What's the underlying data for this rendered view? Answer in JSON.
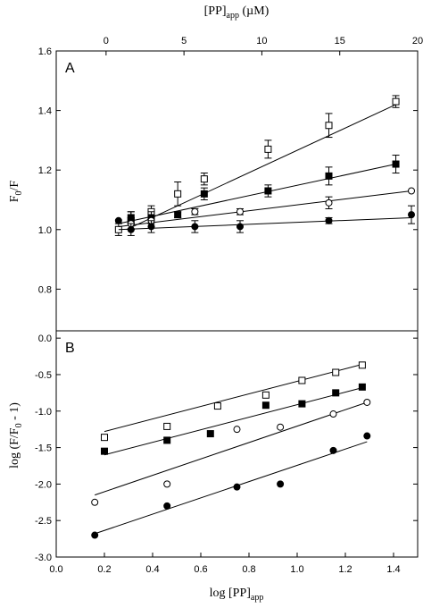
{
  "chart_data": [
    {
      "panel": "A",
      "type": "scatter",
      "ylabel": "F0/F",
      "ylabel_main": "F",
      "ylabel_sub": "0",
      "ylabel_tail": "/F",
      "x2label": "[PP]app (µM)",
      "x2label_main": "[PP]",
      "x2label_sub": "app",
      "x2label_tail": " (µM)",
      "xlim": [
        -3.2,
        20
      ],
      "ylim": [
        0.66,
        1.6
      ],
      "x2ticks": [
        "0",
        "5",
        "10",
        "15",
        "20"
      ],
      "yticks": [
        "0.8",
        "1.0",
        "1.2",
        "1.4",
        "1.6"
      ],
      "series": [
        {
          "marker": "open-square",
          "x": [
            0.8,
            1.6,
            2.9,
            4.6,
            6.3,
            10.4,
            14.3,
            18.6
          ],
          "y": [
            1.0,
            1.03,
            1.06,
            1.12,
            1.17,
            1.27,
            1.35,
            1.43
          ],
          "err": [
            0.02,
            0.03,
            0.02,
            0.04,
            0.02,
            0.03,
            0.04,
            0.02
          ],
          "fit": [
            [
              1.3,
              1.0
            ],
            [
              18.6,
              1.42
            ]
          ]
        },
        {
          "marker": "filled-square",
          "x": [
            1.6,
            2.9,
            4.6,
            6.3,
            10.4,
            14.3,
            18.6
          ],
          "y": [
            1.04,
            1.04,
            1.05,
            1.12,
            1.13,
            1.18,
            1.22
          ],
          "err": [
            0.02,
            0.02,
            0.01,
            0.02,
            0.02,
            0.03,
            0.03
          ],
          "fit": [
            [
              0.8,
              1.02
            ],
            [
              18.6,
              1.22
            ]
          ]
        },
        {
          "marker": "open-circle",
          "x": [
            1.6,
            2.9,
            5.7,
            8.6,
            14.3,
            19.6
          ],
          "y": [
            1.02,
            1.03,
            1.06,
            1.06,
            1.09,
            1.13
          ],
          "err": [
            0.02,
            0.02,
            0.01,
            0.01,
            0.02,
            0.0
          ],
          "fit": [
            [
              0.8,
              1.01
            ],
            [
              19.6,
              1.13
            ]
          ]
        },
        {
          "marker": "filled-circle",
          "x": [
            0.8,
            1.6,
            2.9,
            5.7,
            8.6,
            14.3,
            19.6
          ],
          "y": [
            1.03,
            1.0,
            1.01,
            1.01,
            1.01,
            1.03,
            1.05
          ],
          "err": [
            0.0,
            0.02,
            0.02,
            0.02,
            0.02,
            0.01,
            0.03
          ],
          "fit": [
            [
              0.8,
              1.0
            ],
            [
              19.6,
              1.04
            ]
          ]
        }
      ]
    },
    {
      "panel": "B",
      "type": "scatter",
      "xlabel": "log [PP]app",
      "xlabel_main": "log [PP]",
      "xlabel_sub": "app",
      "ylabel": "log (F/F0 - 1)",
      "ylabel_main": "log (F/F",
      "ylabel_sub": "0",
      "ylabel_tail": " - 1)",
      "xlim": [
        0.0,
        1.5
      ],
      "ylim": [
        -3.0,
        0.1
      ],
      "xticks": [
        "0.0",
        "0.2",
        "0.4",
        "0.6",
        "0.8",
        "1.0",
        "1.2",
        "1.4"
      ],
      "yticks": [
        "0.0",
        "-0.5",
        "-1.0",
        "-1.5",
        "-2.0",
        "-2.5",
        "-3.0"
      ],
      "series": [
        {
          "marker": "open-square",
          "x": [
            0.2,
            0.46,
            0.67,
            0.87,
            1.02,
            1.16,
            1.27
          ],
          "y": [
            -1.36,
            -1.21,
            -0.93,
            -0.78,
            -0.58,
            -0.47,
            -0.37
          ],
          "fit": [
            [
              0.2,
              -1.28
            ],
            [
              1.27,
              -0.36
            ]
          ]
        },
        {
          "marker": "filled-square",
          "x": [
            0.2,
            0.46,
            0.64,
            0.87,
            1.02,
            1.16,
            1.27
          ],
          "y": [
            -1.55,
            -1.4,
            -1.31,
            -0.92,
            -0.9,
            -0.75,
            -0.67
          ],
          "fit": [
            [
              0.2,
              -1.6
            ],
            [
              1.27,
              -0.68
            ]
          ]
        },
        {
          "marker": "open-circle",
          "x": [
            0.16,
            0.46,
            0.75,
            0.93,
            1.15,
            1.29
          ],
          "y": [
            -2.25,
            -2.0,
            -1.25,
            -1.22,
            -1.04,
            -0.88
          ],
          "fit": [
            [
              0.16,
              -2.15
            ],
            [
              1.29,
              -0.88
            ]
          ]
        },
        {
          "marker": "filled-circle",
          "x": [
            0.16,
            0.46,
            0.75,
            0.93,
            1.15,
            1.29
          ],
          "y": [
            -2.7,
            -2.3,
            -2.04,
            -2.0,
            -1.54,
            -1.34
          ],
          "fit": [
            [
              0.16,
              -2.68
            ],
            [
              1.29,
              -1.42
            ]
          ]
        }
      ]
    }
  ]
}
